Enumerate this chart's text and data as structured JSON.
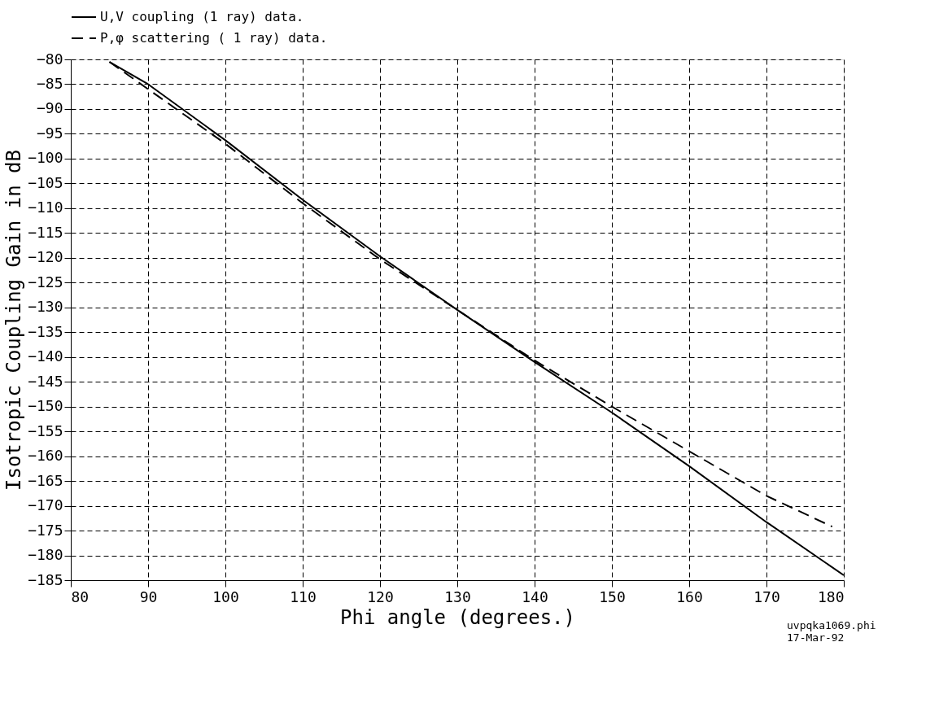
{
  "chart_data": {
    "type": "line",
    "xlabel": "Phi angle (degrees.)",
    "ylabel": "Isotropic Coupling Gain in dB",
    "xlim": [
      80,
      180
    ],
    "xticks": [
      80,
      90,
      100,
      110,
      120,
      130,
      140,
      150,
      {
        "value": 160,
        "label": "160"
      },
      170,
      180
    ],
    "ylim": [
      -185,
      -80
    ],
    "yticks": [
      -185,
      -180,
      -175,
      -170,
      -165,
      -160,
      -155,
      -150,
      -145,
      -140,
      -135,
      -130,
      -125,
      -120,
      -115,
      -110,
      -105,
      -100,
      -95,
      -90,
      -85,
      -80
    ],
    "grid": true,
    "legend": "top",
    "marker": "none",
    "series": [
      {
        "name": "U,V coupling      (1 ray) data.",
        "color": "#000000",
        "line_style": "solid",
        "x": [
          85,
          90,
          100,
          110,
          120,
          130,
          140,
          150,
          160,
          170,
          180
        ],
        "values": [
          -80.5,
          -85,
          -96.3,
          -108.3,
          -119.7,
          -130.5,
          -141,
          -151.2,
          -162,
          -173.3,
          -184
        ]
      },
      {
        "name": "P,φ scattering    ( 1 ray) data.",
        "color": "#000000",
        "line_style": "dashed",
        "x": [
          85,
          90,
          100,
          110,
          120,
          130,
          140,
          150,
          160,
          170,
          178.5
        ],
        "values": [
          -80.5,
          -86,
          -97,
          -109,
          -120.3,
          -130.5,
          -140.7,
          -150,
          -159,
          -168,
          -174.2
        ]
      }
    ],
    "annotations": [
      "uvpqka1069.phi",
      "17-Mar-92"
    ]
  }
}
